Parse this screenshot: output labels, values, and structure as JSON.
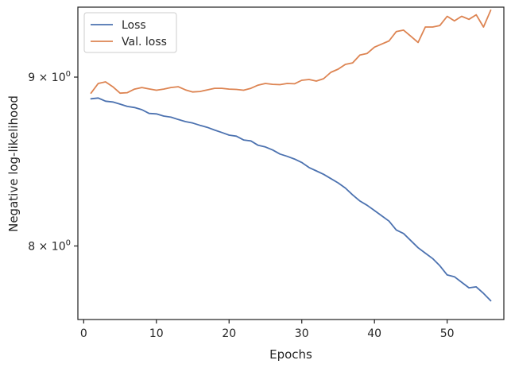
{
  "chart_data": {
    "type": "line",
    "title": "",
    "xlabel": "Epochs",
    "ylabel": "Negative log-likelihood",
    "yscale": "log",
    "xlim": [
      -0.8,
      57.8
    ],
    "ylim": [
      7.6,
      9.45
    ],
    "grid": false,
    "legend_position": "top-left",
    "x_ticks": [
      0,
      10,
      20,
      30,
      40,
      50
    ],
    "x_tick_labels": [
      "0",
      "10",
      "20",
      "30",
      "40",
      "50"
    ],
    "y_ticks": [
      {
        "value": 9.0,
        "base": "9 × 10",
        "exp": "0"
      },
      {
        "value": 8.0,
        "base": "8 × 10",
        "exp": "0"
      }
    ],
    "x": [
      1,
      2,
      3,
      4,
      5,
      6,
      7,
      8,
      9,
      10,
      11,
      12,
      13,
      14,
      15,
      16,
      17,
      18,
      19,
      20,
      21,
      22,
      23,
      24,
      25,
      26,
      27,
      28,
      29,
      30,
      31,
      32,
      33,
      34,
      35,
      36,
      37,
      38,
      39,
      40,
      41,
      42,
      43,
      44,
      45,
      46,
      47,
      48,
      49,
      50,
      51,
      52,
      53,
      54,
      55,
      56
    ],
    "series": [
      {
        "name": "Loss",
        "color": "#4c72b0",
        "values": [
          8.865,
          8.87,
          8.85,
          8.845,
          8.832,
          8.818,
          8.811,
          8.798,
          8.775,
          8.772,
          8.759,
          8.752,
          8.738,
          8.725,
          8.716,
          8.702,
          8.69,
          8.674,
          8.659,
          8.643,
          8.637,
          8.614,
          8.608,
          8.582,
          8.572,
          8.554,
          8.53,
          8.516,
          8.5,
          8.48,
          8.45,
          8.43,
          8.41,
          8.385,
          8.36,
          8.33,
          8.29,
          8.255,
          8.23,
          8.2,
          8.17,
          8.14,
          8.09,
          8.07,
          8.03,
          7.99,
          7.96,
          7.93,
          7.89,
          7.84,
          7.83,
          7.8,
          7.77,
          7.775,
          7.74,
          7.7
        ]
      },
      {
        "name": "Val. loss",
        "color": "#dd8452",
        "values": [
          8.9,
          8.96,
          8.97,
          8.94,
          8.9,
          8.903,
          8.925,
          8.935,
          8.926,
          8.918,
          8.925,
          8.935,
          8.94,
          8.92,
          8.907,
          8.91,
          8.92,
          8.93,
          8.93,
          8.925,
          8.923,
          8.918,
          8.93,
          8.95,
          8.96,
          8.955,
          8.953,
          8.96,
          8.958,
          8.98,
          8.985,
          8.975,
          8.99,
          9.03,
          9.05,
          9.08,
          9.09,
          9.14,
          9.15,
          9.19,
          9.21,
          9.23,
          9.29,
          9.3,
          9.26,
          9.22,
          9.32,
          9.32,
          9.33,
          9.39,
          9.36,
          9.39,
          9.37,
          9.4,
          9.32,
          9.43
        ]
      }
    ]
  }
}
